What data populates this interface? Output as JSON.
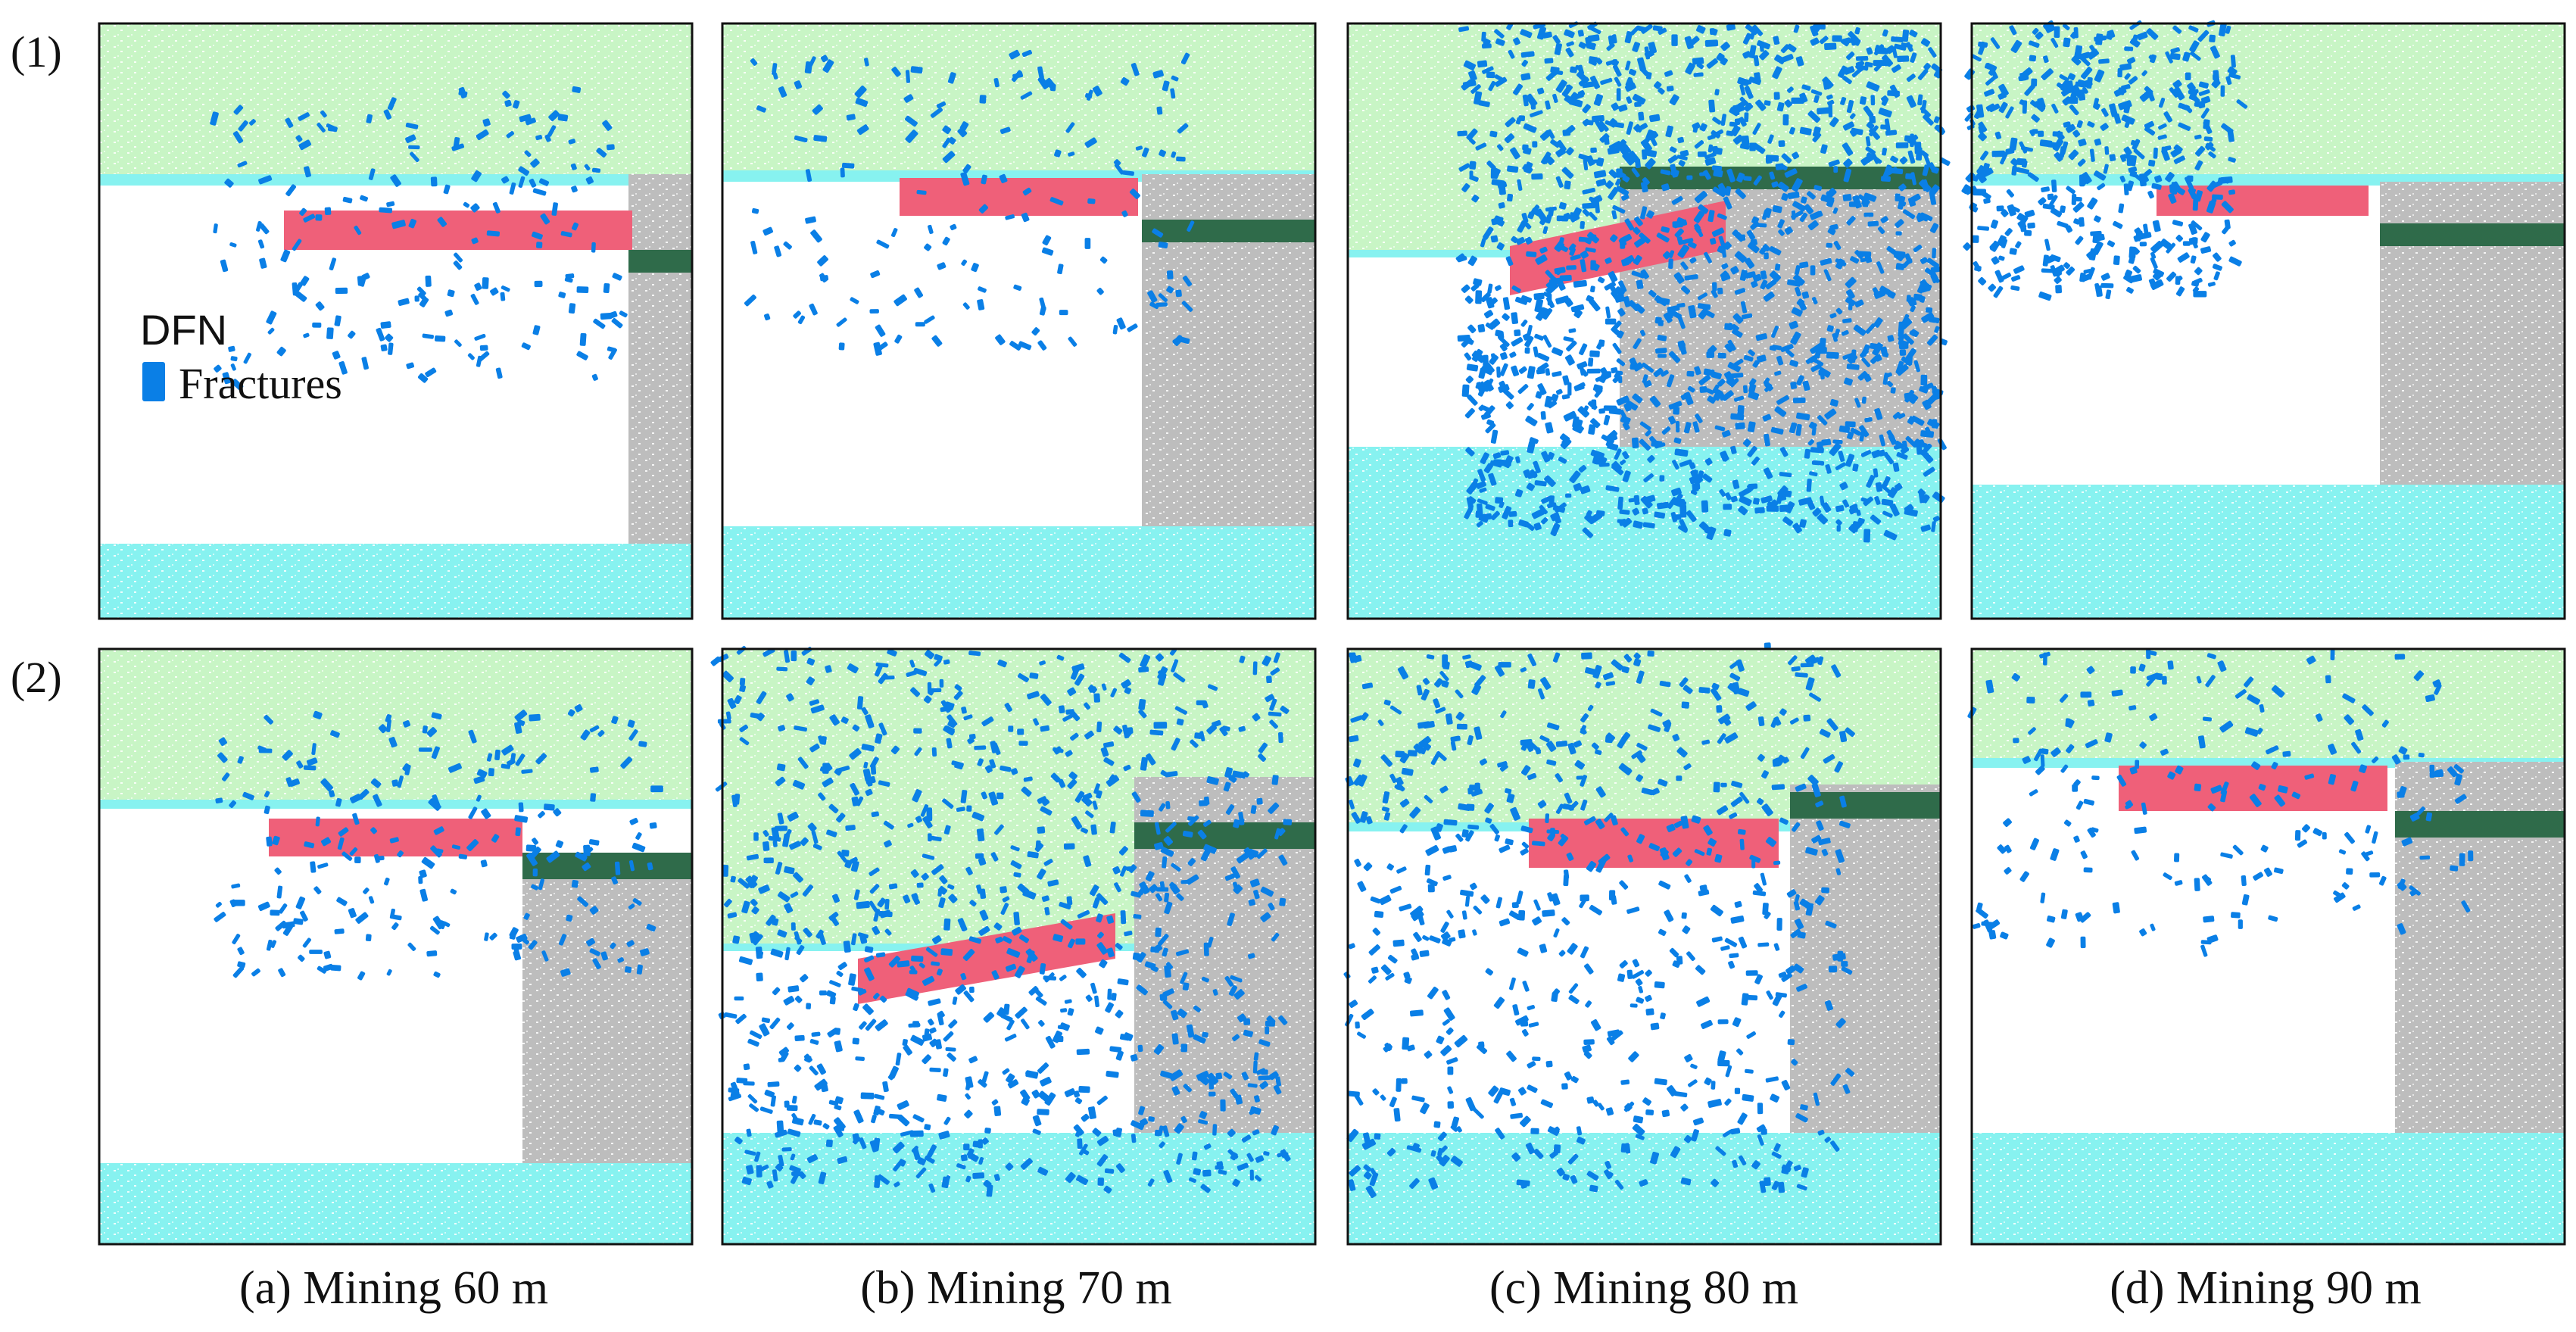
{
  "row_labels": [
    "(1)",
    "(2)"
  ],
  "captions": [
    "(a) Mining 60 m",
    "(b) Mining 70 m",
    "(c) Mining 80 m",
    "(d) Mining 90 m"
  ],
  "legend": {
    "title": "DFN",
    "item_label": "Fractures",
    "item_color": "#0a7fe6"
  },
  "colors": {
    "overburden": "#c8f5c5",
    "aquifer": "#87f2f0",
    "coal_seam": "#ef6079",
    "gray_rock": "#bdbdbd",
    "key_stratum": "#2f6b4a",
    "fracture": "#0a7fe6",
    "background": "#ffffff"
  }
}
